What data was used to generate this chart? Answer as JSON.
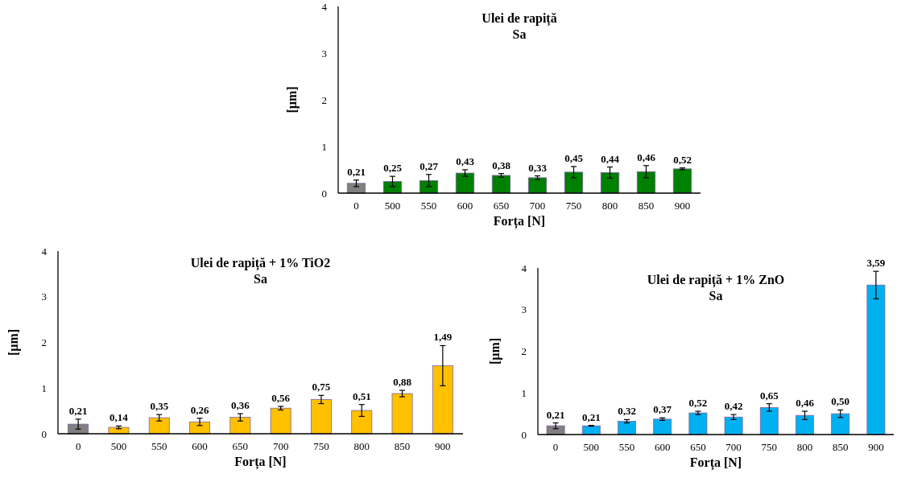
{
  "chart_data": [
    {
      "type": "bar",
      "title": "Ulei de rapiță\nSa",
      "xlabel": "Forța [N]",
      "ylabel": "[µm]",
      "categories": [
        "0",
        "500",
        "550",
        "600",
        "650",
        "700",
        "750",
        "800",
        "850",
        "900"
      ],
      "values": [
        0.21,
        0.25,
        0.27,
        0.43,
        0.38,
        0.33,
        0.45,
        0.44,
        0.46,
        0.52
      ],
      "colors": [
        "#808080",
        "#008000",
        "#008000",
        "#008000",
        "#008000",
        "#008000",
        "#008000",
        "#008000",
        "#008000",
        "#008000"
      ],
      "errors": [
        0.07,
        0.11,
        0.13,
        0.07,
        0.04,
        0.04,
        0.12,
        0.12,
        0.13,
        0.02
      ],
      "value_labels": [
        "0,21",
        "0,25",
        "0,27",
        "0,43",
        "0,38",
        "0,33",
        "0,45",
        "0,44",
        "0,46",
        "0,52"
      ],
      "ylim": [
        0,
        4
      ],
      "yticks": [
        0,
        1,
        2,
        3,
        4
      ],
      "grid": false
    },
    {
      "type": "bar",
      "title": "Ulei de rapiță + 1% TiO2\nSa",
      "xlabel": "Forța [N]",
      "ylabel": "[µm]",
      "categories": [
        "0",
        "500",
        "550",
        "600",
        "650",
        "700",
        "750",
        "800",
        "850",
        "900"
      ],
      "values": [
        0.21,
        0.14,
        0.35,
        0.26,
        0.36,
        0.56,
        0.75,
        0.51,
        0.88,
        1.49
      ],
      "colors": [
        "#808080",
        "#ffc000",
        "#ffc000",
        "#ffc000",
        "#ffc000",
        "#ffc000",
        "#ffc000",
        "#ffc000",
        "#ffc000",
        "#ffc000"
      ],
      "errors": [
        0.11,
        0.03,
        0.07,
        0.08,
        0.08,
        0.04,
        0.09,
        0.13,
        0.07,
        0.44
      ],
      "value_labels": [
        "0,21",
        "0,14",
        "0,35",
        "0,26",
        "0,36",
        "0,56",
        "0,75",
        "0,51",
        "0,88",
        "1,49"
      ],
      "ylim": [
        0,
        4
      ],
      "yticks": [
        0,
        1,
        2,
        3,
        4
      ],
      "grid": false
    },
    {
      "type": "bar",
      "title": "Ulei de rapiță + 1% ZnO\nSa",
      "xlabel": "Forța [N]",
      "ylabel": "[µm]",
      "categories": [
        "0",
        "500",
        "550",
        "600",
        "650",
        "700",
        "750",
        "800",
        "850",
        "900"
      ],
      "values": [
        0.21,
        0.21,
        0.32,
        0.37,
        0.52,
        0.42,
        0.65,
        0.46,
        0.5,
        3.59
      ],
      "colors": [
        "#808080",
        "#00b0f0",
        "#00b0f0",
        "#00b0f0",
        "#00b0f0",
        "#00b0f0",
        "#00b0f0",
        "#00b0f0",
        "#00b0f0",
        "#00b0f0"
      ],
      "errors": [
        0.07,
        0.01,
        0.04,
        0.03,
        0.04,
        0.06,
        0.09,
        0.1,
        0.09,
        0.33
      ],
      "value_labels": [
        "0,21",
        "0,21",
        "0,32",
        "0,37",
        "0,52",
        "0,42",
        "0,65",
        "0,46",
        "0,50",
        "3,59"
      ],
      "ylim": [
        0,
        4
      ],
      "yticks": [
        0,
        1,
        2,
        3,
        4
      ],
      "grid": false
    }
  ]
}
